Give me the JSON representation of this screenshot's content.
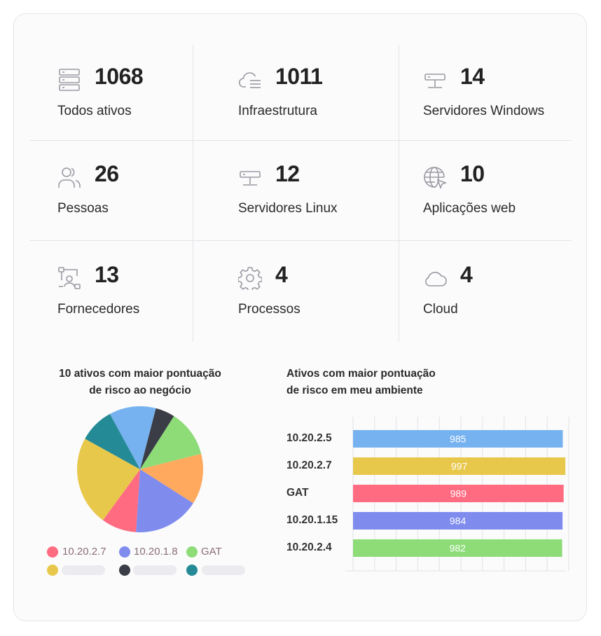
{
  "stats": [
    {
      "count": "1068",
      "label": "Todos ativos",
      "icon": "server-stack-icon"
    },
    {
      "count": "1011",
      "label": "Infraestrutura",
      "icon": "cloud-list-icon"
    },
    {
      "count": "14",
      "label": "Servidores Windows",
      "icon": "server-icon"
    },
    {
      "count": "26",
      "label": "Pessoas",
      "icon": "people-icon"
    },
    {
      "count": "12",
      "label": "Servidores Linux",
      "icon": "server-icon"
    },
    {
      "count": "10",
      "label": "Aplicações web",
      "icon": "globe-cursor-icon"
    },
    {
      "count": "13",
      "label": "Fornecedores",
      "icon": "supplier-network-icon"
    },
    {
      "count": "4",
      "label": "Processos",
      "icon": "gear-icon"
    },
    {
      "count": "4",
      "label": "Cloud",
      "icon": "cloud-icon"
    }
  ],
  "pie": {
    "title_line1": "10 ativos com maior pontuação",
    "title_line2": "de risco ao negócio",
    "legend": [
      {
        "label": "10.20.2.7",
        "color": "#ff6b81"
      },
      {
        "label": "10.20.1.8",
        "color": "#7f8cee"
      },
      {
        "label": "GAT",
        "color": "#8ddc78"
      },
      {
        "label": "",
        "color": "#e8c84b"
      },
      {
        "label": "",
        "color": "#3a3d45"
      },
      {
        "label": "",
        "color": "#248a96"
      }
    ]
  },
  "bar": {
    "title_line1": "Ativos com maior pontuação",
    "title_line2": "de risco em meu ambiente"
  },
  "chart_data": [
    {
      "type": "pie",
      "title": "10 ativos com maior pontuação de risco ao negócio",
      "slices": [
        {
          "label": "",
          "value": 12,
          "color": "#76b2f0"
        },
        {
          "label": "",
          "value": 5,
          "color": "#3a3d45"
        },
        {
          "label": "GAT",
          "value": 12,
          "color": "#8ddc78"
        },
        {
          "label": "",
          "value": 13,
          "color": "#ffa95e"
        },
        {
          "label": "10.20.1.8",
          "value": 17,
          "color": "#7f8cee"
        },
        {
          "label": "10.20.2.7",
          "value": 9,
          "color": "#ff6b81"
        },
        {
          "label": "",
          "value": 23,
          "color": "#e8c84b"
        },
        {
          "label": "",
          "value": 9,
          "color": "#248a96"
        }
      ]
    },
    {
      "type": "bar",
      "title": "Ativos com maior pontuação de risco em meu ambiente",
      "orientation": "horizontal",
      "categories": [
        "10.20.2.5",
        "10.20.2.7",
        "GAT",
        "10.20.1.15",
        "10.20.2.4"
      ],
      "values": [
        985,
        997,
        989,
        984,
        982
      ],
      "colors": [
        "#76b2f0",
        "#e8c84b",
        "#ff6b81",
        "#7f8cee",
        "#8ddc78"
      ]
    }
  ]
}
